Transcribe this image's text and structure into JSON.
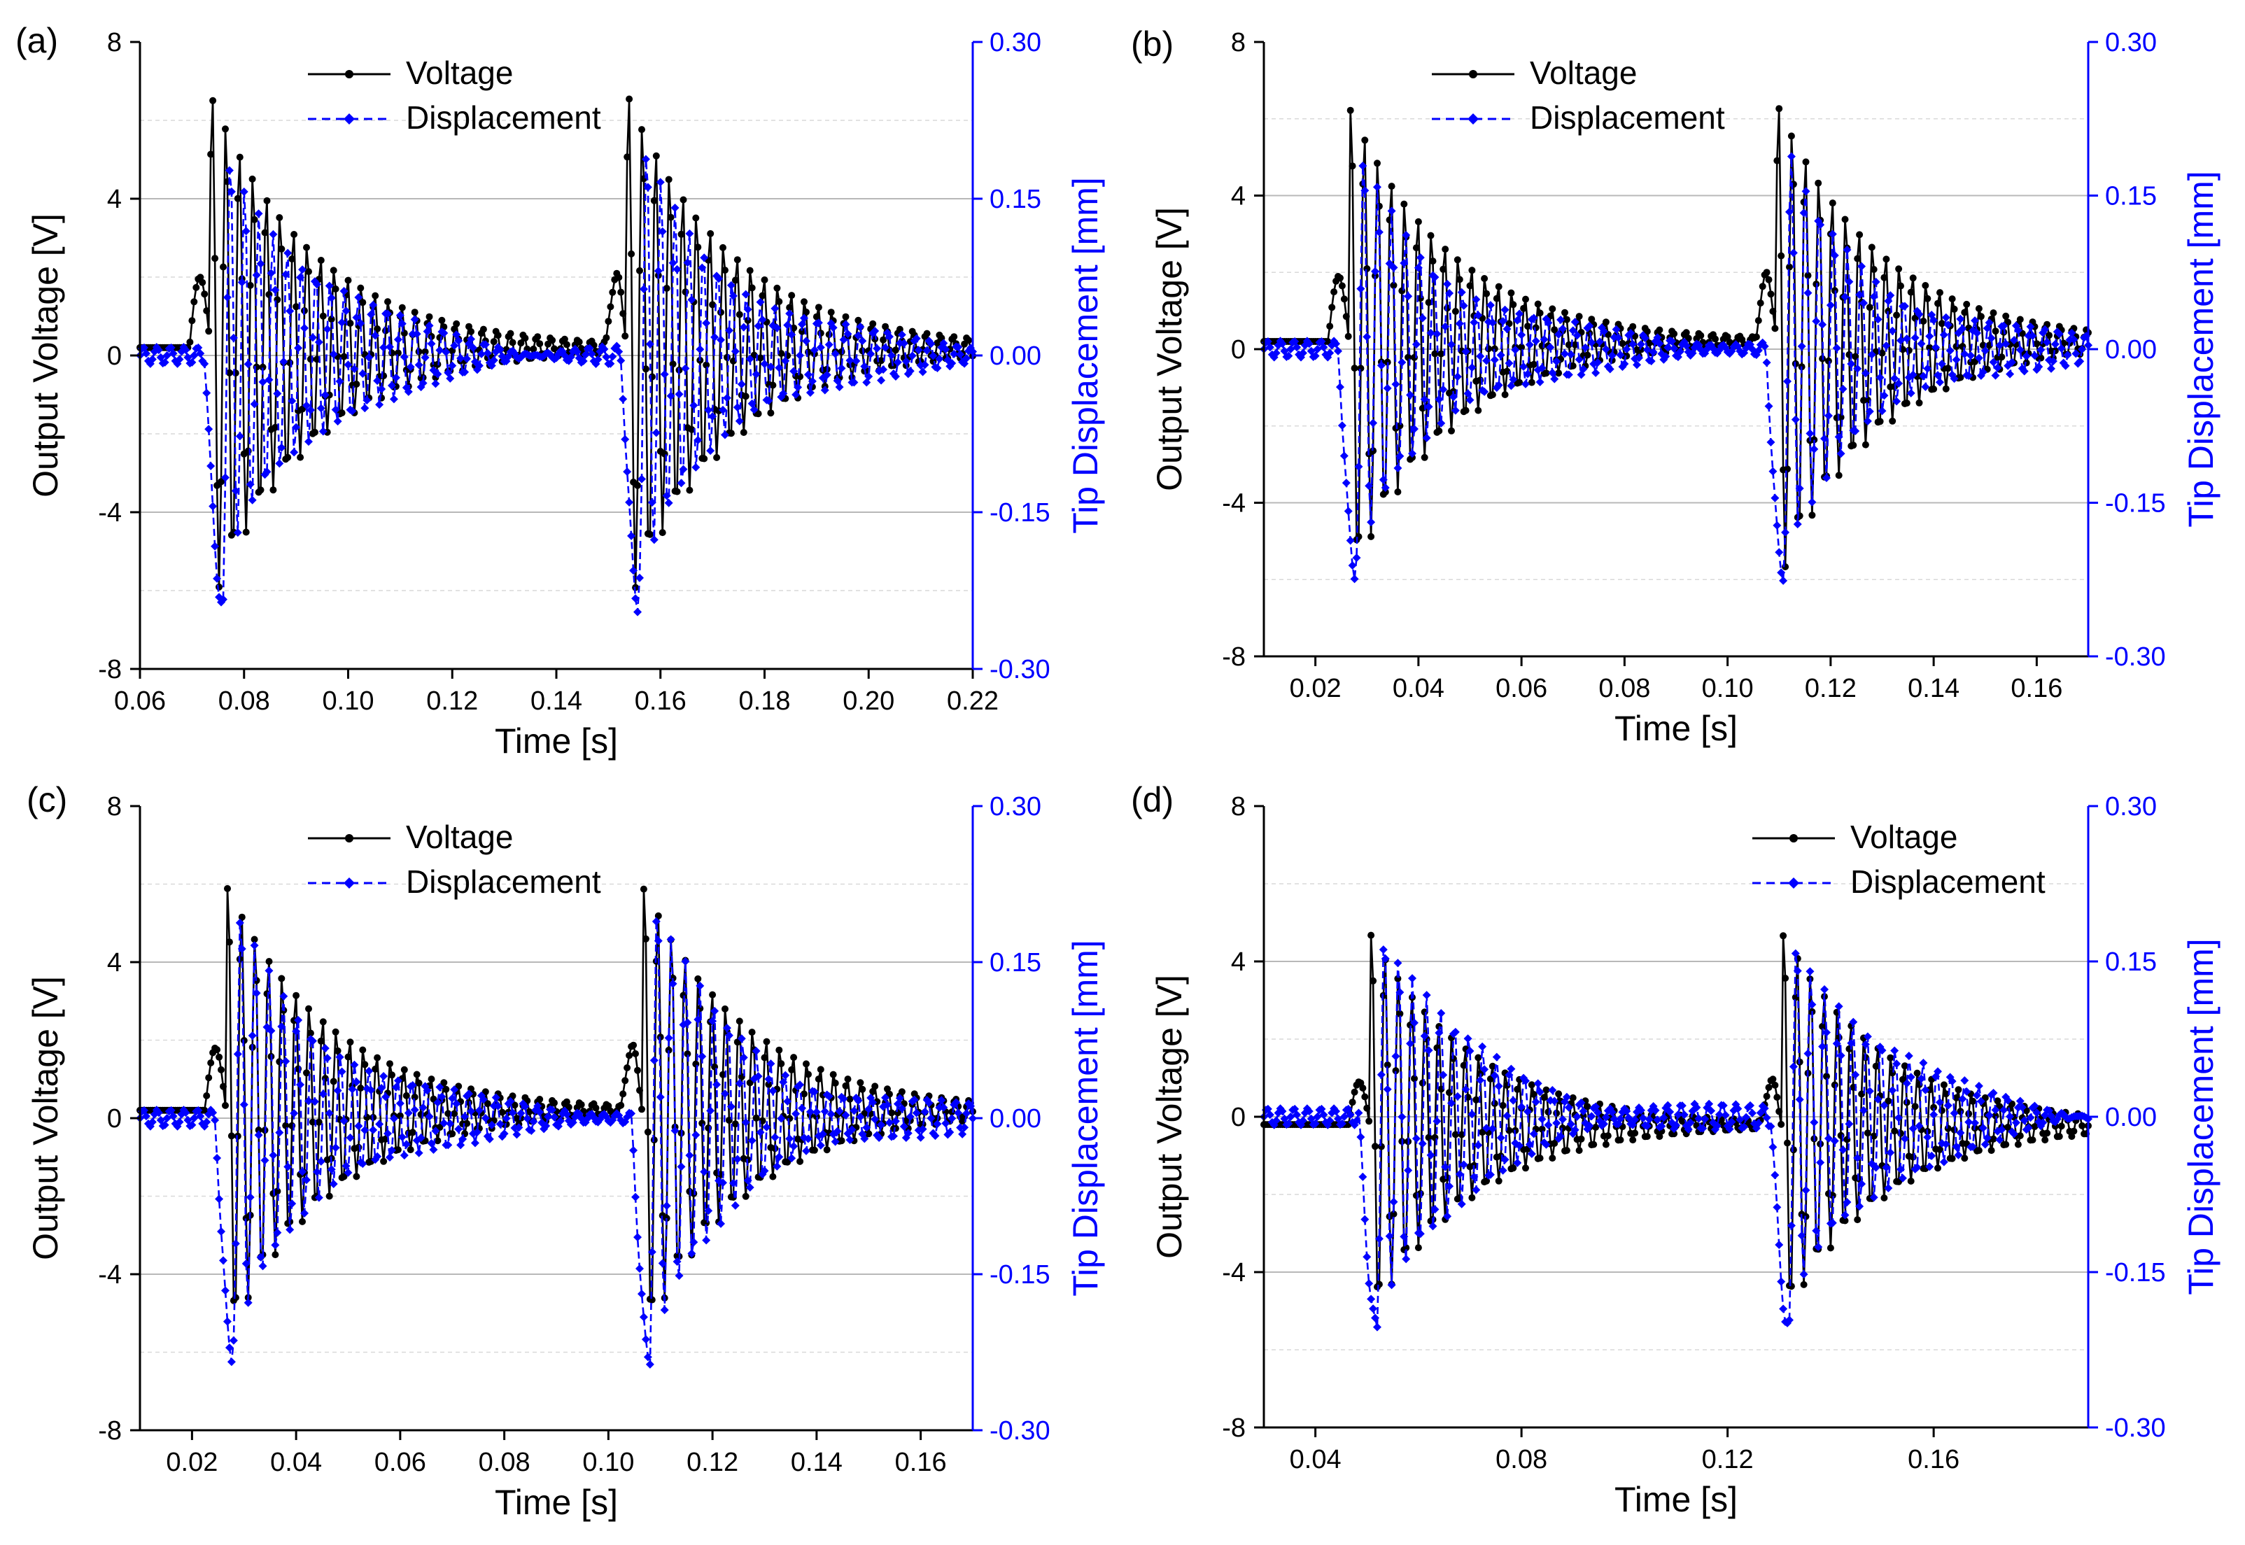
{
  "chart_data": [
    {
      "panel_label": "(a)",
      "type": "line",
      "xlabel": "Time [s]",
      "ylabel": "Output Voltage [V]",
      "y2label": "Tip Displacement [mm]",
      "xlim": [
        0.06,
        0.22
      ],
      "ylim": [
        -8,
        8
      ],
      "y2lim": [
        -0.3,
        0.3
      ],
      "xticks": [
        "0.06",
        "0.08",
        "0.10",
        "0.12",
        "0.14",
        "0.16",
        "0.18",
        "0.20",
        "0.22"
      ],
      "yticks": [
        "-8",
        "-4",
        "0",
        "4",
        "8"
      ],
      "y2ticks": [
        "-0.30",
        "-0.15",
        "0.00",
        "0.15",
        "0.30"
      ],
      "grid": true,
      "legend_position": "top-center",
      "series": [
        {
          "name": "Voltage",
          "axis": "left",
          "color": "#000000",
          "style": "solid",
          "marker": "circle",
          "waveform": {
            "impact_times": [
              0.0705,
              0.1505
            ],
            "pre_peak": 1.8,
            "main_peak": 6.6,
            "main_trough": -6.7,
            "decay_tau": 0.02,
            "period": 0.0026,
            "baseline": 0.2,
            "t_start": 0.06,
            "t_end": 0.22,
            "step": 0.0004
          }
        },
        {
          "name": "Displacement",
          "axis": "right",
          "color": "#0000ff",
          "style": "dashed",
          "marker": "diamond",
          "waveform": {
            "impact_times": [
              0.0725,
              0.1525
            ],
            "min": -0.24,
            "max": 0.18,
            "decay_tau": 0.018,
            "period": 0.0026,
            "t_start": 0.06,
            "t_end": 0.22,
            "step": 0.0004
          }
        }
      ]
    },
    {
      "panel_label": "(b)",
      "type": "line",
      "xlabel": "Time [s]",
      "ylabel": "Output Voltage [V]",
      "y2label": "Tip Displacement [mm]",
      "xlim": [
        0.01,
        0.17
      ],
      "ylim": [
        -8,
        8
      ],
      "y2lim": [
        -0.3,
        0.3
      ],
      "xticks": [
        "0.02",
        "0.04",
        "0.06",
        "0.08",
        "0.10",
        "0.12",
        "0.14",
        "0.16"
      ],
      "yticks": [
        "-8",
        "-4",
        "0",
        "4",
        "8"
      ],
      "y2ticks": [
        "-0.30",
        "-0.15",
        "0.00",
        "0.15",
        "0.30"
      ],
      "grid": true,
      "legend_position": "top-center",
      "series": [
        {
          "name": "Voltage",
          "axis": "left",
          "color": "#000000",
          "style": "solid",
          "marker": "circle",
          "waveform": {
            "impact_times": [
              0.0235,
              0.1065
            ],
            "pre_peak": 1.7,
            "main_peak": 6.2,
            "main_trough": -6.4,
            "decay_tau": 0.02,
            "period": 0.0026,
            "baseline": 0.2,
            "t_start": 0.01,
            "t_end": 0.17,
            "step": 0.0004
          }
        },
        {
          "name": "Displacement",
          "axis": "right",
          "color": "#0000ff",
          "style": "dashed",
          "marker": "diamond",
          "waveform": {
            "impact_times": [
              0.0245,
              0.1075
            ],
            "min": -0.22,
            "max": 0.18,
            "decay_tau": 0.018,
            "period": 0.0026,
            "t_start": 0.01,
            "t_end": 0.17,
            "step": 0.0004
          }
        }
      ]
    },
    {
      "panel_label": "(c)",
      "type": "line",
      "xlabel": "Time [s]",
      "ylabel": "Output Voltage [V]",
      "y2label": "Tip Displacement [mm]",
      "xlim": [
        0.01,
        0.17
      ],
      "ylim": [
        -8,
        8
      ],
      "y2lim": [
        -0.3,
        0.3
      ],
      "xticks": [
        "0.02",
        "0.04",
        "0.06",
        "0.08",
        "0.10",
        "0.12",
        "0.14",
        "0.16"
      ],
      "yticks": [
        "-8",
        "-4",
        "0",
        "4",
        "8"
      ],
      "y2ticks": [
        "-0.30",
        "-0.15",
        "0.00",
        "0.15",
        "0.30"
      ],
      "grid": true,
      "legend_position": "top-center",
      "series": [
        {
          "name": "Voltage",
          "axis": "left",
          "color": "#000000",
          "style": "solid",
          "marker": "circle",
          "waveform": {
            "impact_times": [
              0.0235,
              0.1035
            ],
            "pre_peak": 1.6,
            "main_peak": 5.9,
            "main_trough": -6.0,
            "decay_tau": 0.02,
            "period": 0.0026,
            "baseline": 0.2,
            "t_start": 0.01,
            "t_end": 0.17,
            "step": 0.0004
          }
        },
        {
          "name": "Displacement",
          "axis": "right",
          "color": "#0000ff",
          "style": "dashed",
          "marker": "diamond",
          "waveform": {
            "impact_times": [
              0.0245,
              0.1045
            ],
            "min": -0.23,
            "max": 0.19,
            "decay_tau": 0.018,
            "period": 0.0026,
            "t_start": 0.01,
            "t_end": 0.17,
            "step": 0.0004
          }
        }
      ]
    },
    {
      "panel_label": "(d)",
      "type": "line",
      "xlabel": "Time [s]",
      "ylabel": "Output Voltage [V]",
      "y2label": "Tip Displacement [mm]",
      "xlim": [
        0.03,
        0.19
      ],
      "ylim": [
        -8,
        8
      ],
      "y2lim": [
        -0.3,
        0.3
      ],
      "xticks": [
        "0.04",
        "0.08",
        "0.12",
        "0.16"
      ],
      "yticks": [
        "-8",
        "-4",
        "0",
        "4",
        "8"
      ],
      "y2ticks": [
        "-0.30",
        "-0.15",
        "0.00",
        "0.15",
        "0.30"
      ],
      "grid": true,
      "legend_position": "top-right",
      "series": [
        {
          "name": "Voltage",
          "axis": "left",
          "color": "#000000",
          "style": "solid",
          "marker": "circle",
          "waveform": {
            "impact_times": [
              0.0475,
              0.1275
            ],
            "pre_peak": 1.1,
            "main_peak": 4.8,
            "main_trough": -5.4,
            "decay_tau": 0.02,
            "period": 0.0026,
            "baseline": -0.2,
            "t_start": 0.03,
            "t_end": 0.19,
            "step": 0.0004
          }
        },
        {
          "name": "Displacement",
          "axis": "right",
          "color": "#0000ff",
          "style": "dashed",
          "marker": "diamond",
          "waveform": {
            "impact_times": [
              0.0485,
              0.1285
            ],
            "min": -0.205,
            "max": 0.175,
            "decay_tau": 0.018,
            "period": 0.0026,
            "t_start": 0.03,
            "t_end": 0.19,
            "step": 0.0004
          }
        }
      ]
    }
  ]
}
